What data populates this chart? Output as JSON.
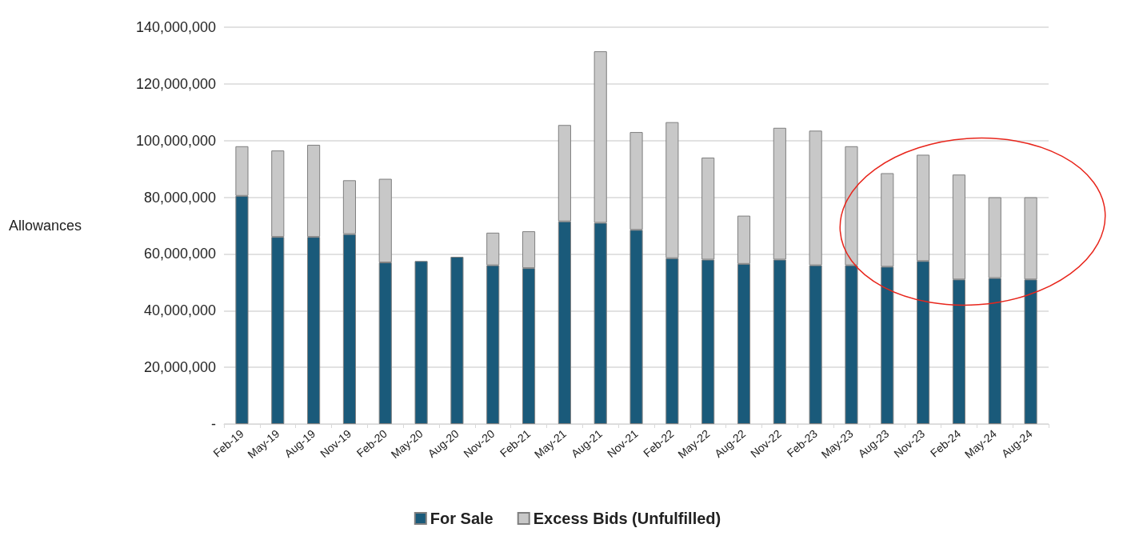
{
  "chart_data": {
    "type": "bar",
    "stacked": true,
    "ylabel": "Allowances",
    "categories": [
      "Feb-19",
      "May-19",
      "Aug-19",
      "Nov-19",
      "Feb-20",
      "May-20",
      "Aug-20",
      "Nov-20",
      "Feb-21",
      "May-21",
      "Aug-21",
      "Nov-21",
      "Feb-22",
      "May-22",
      "Aug-22",
      "Nov-22",
      "Feb-23",
      "May-23",
      "Aug-23",
      "Nov-23",
      "Feb-24",
      "May-24",
      "Aug-24"
    ],
    "series": [
      {
        "name": "For Sale",
        "color": "#1a5a7a",
        "values": [
          80500000.0,
          66000000.0,
          66000000.0,
          67000000.0,
          57000000.0,
          57500000.0,
          59000000.0,
          56000000.0,
          55000000.0,
          71500000.0,
          71000000.0,
          68500000.0,
          58500000.0,
          58000000.0,
          56500000.0,
          58000000.0,
          56000000.0,
          56000000.0,
          55500000.0,
          57500000.0,
          51000000.0,
          51500000.0,
          51000000.0
        ]
      },
      {
        "name": "Excess Bids (Unfulfilled)",
        "color": "#c8c8c8",
        "values": [
          17500000.0,
          30500000.0,
          32500000.0,
          19000000.0,
          29500000.0,
          null,
          null,
          11500000.0,
          13000000.0,
          34000000.0,
          60500000.0,
          34500000.0,
          48000000.0,
          36000000.0,
          17000000.0,
          46500000.0,
          47500000.0,
          42000000.0,
          33000000.0,
          37500000.0,
          37000000.0,
          28500000.0,
          29000000.0
        ]
      }
    ],
    "ylim": [
      0,
      140000000
    ],
    "yticks": [
      {
        "value": 0,
        "label": "-"
      },
      {
        "value": 20000000,
        "label": "20,000,000"
      },
      {
        "value": 40000000,
        "label": "40,000,000"
      },
      {
        "value": 60000000,
        "label": "60,000,000"
      },
      {
        "value": 80000000,
        "label": "80,000,000"
      },
      {
        "value": 100000000,
        "label": "100,000,000"
      },
      {
        "value": 120000000,
        "label": "120,000,000"
      },
      {
        "value": 140000000,
        "label": "140,000,000"
      }
    ],
    "grid": "y",
    "legend": "bottom"
  }
}
